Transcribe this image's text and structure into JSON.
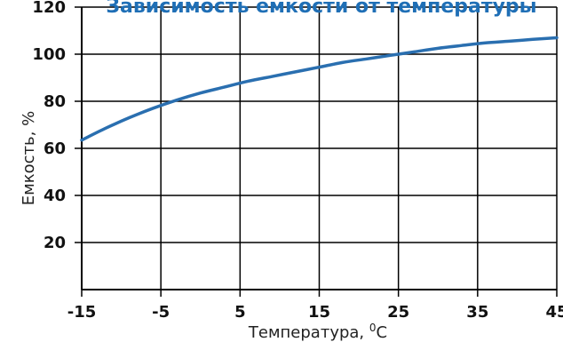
{
  "chart_data": {
    "type": "line",
    "title": "Зависимость емкости от температуры",
    "xlabel": "Температура, ",
    "xlabel_unit": "C",
    "xlabel_unit_sup": "0",
    "ylabel": "Емкость, %",
    "x_ticks": [
      -15,
      -5,
      5,
      15,
      25,
      35,
      45
    ],
    "y_ticks": [
      20,
      40,
      60,
      80,
      100,
      120
    ],
    "xlim": [
      -15,
      45
    ],
    "ylim": [
      0,
      120
    ],
    "grid": true,
    "series": [
      {
        "color": "#2a6fb0",
        "x": [
          -15,
          -12,
          -9,
          -6,
          -3,
          0,
          3,
          6,
          9,
          12,
          15,
          18,
          21,
          24,
          25,
          27,
          30,
          33,
          36,
          39,
          42,
          45
        ],
        "y": [
          63.5,
          68.5,
          73,
          77,
          80.5,
          83.5,
          86,
          88.5,
          90.5,
          92.5,
          94.5,
          96.5,
          98,
          99.5,
          100,
          101,
          102.5,
          103.7,
          104.8,
          105.5,
          106.3,
          107
        ]
      }
    ]
  }
}
